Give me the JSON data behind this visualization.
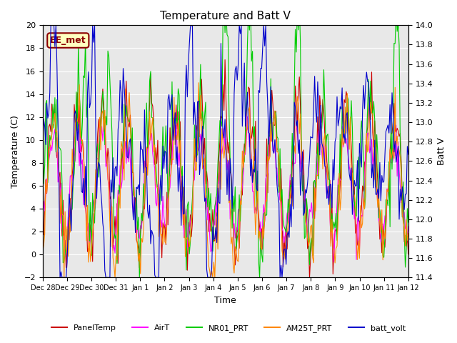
{
  "title": "Temperature and Batt V",
  "xlabel": "Time",
  "ylabel_left": "Temperature (C)",
  "ylabel_right": "Batt V",
  "ylim_left": [
    -2,
    20
  ],
  "ylim_right": [
    11.4,
    14.0
  ],
  "x_tick_labels": [
    "Dec 28",
    "Dec 29",
    "Dec 30",
    "Dec 31",
    "Jan 1",
    "Jan 2",
    "Jan 3",
    "Jan 4",
    "Jan 5",
    "Jan 6",
    "Jan 7",
    "Jan 8",
    "Jan 9",
    "Jan 10",
    "Jan 11",
    "Jan 12"
  ],
  "annotation_text": "EE_met",
  "annotation_color": "#8B0000",
  "annotation_bg": "#FFFFC0",
  "annotation_border": "#8B0000",
  "colors": {
    "PanelTemp": "#CC0000",
    "AirT": "#FF00FF",
    "NR01_PRT": "#00CC00",
    "AM25T_PRT": "#FF8800",
    "batt_volt": "#0000CC"
  },
  "legend_labels": [
    "PanelTemp",
    "AirT",
    "NR01_PRT",
    "AM25T_PRT",
    "batt_volt"
  ],
  "plot_bg": "#E8E8E8",
  "grid_color": "#FFFFFF",
  "fig_bg": "#FFFFFF"
}
